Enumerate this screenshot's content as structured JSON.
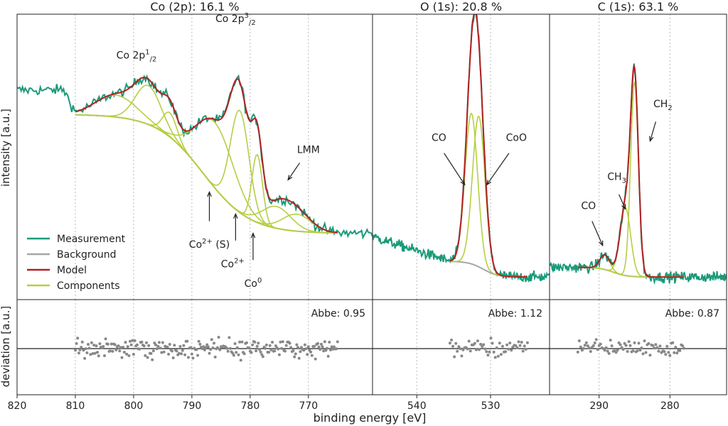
{
  "chart_data": {
    "type": "line",
    "xlabel": "binding energy [eV]",
    "ylabel_top": "intensity [a.u.]",
    "ylabel_bottom": "deviation [a.u.]",
    "legend": {
      "position": "bottom-left of first panel",
      "entries": [
        {
          "label": "Measurement",
          "color": "#1a9a7a"
        },
        {
          "label": "Background",
          "color": "#a6a6a6"
        },
        {
          "label": "Model",
          "color": "#b22222"
        },
        {
          "label": "Components",
          "color": "#b5cf43"
        }
      ]
    },
    "colors": {
      "measurement": "#1a9a7a",
      "background": "#a6a6a6",
      "model": "#b22222",
      "components": "#b5cf43",
      "residual": "#888888"
    },
    "panels": [
      {
        "id": "co",
        "title": "Co (2p): 16.1 %",
        "xlim": [
          820,
          759
        ],
        "ylim": [
          0,
          1.05
        ],
        "xticks": [
          820,
          810,
          800,
          790,
          780,
          770
        ],
        "xtick_labels": [
          "820",
          "810",
          "800",
          "790",
          "780",
          "770"
        ],
        "grid_x": [
          810,
          800,
          790,
          780,
          770
        ],
        "fit_range": [
          810,
          765
        ],
        "background_baseline": {
          "hi": 0.69,
          "lo": 0.2,
          "center": 788,
          "width": 4
        },
        "components": [
          {
            "center": 803,
            "amp": 0.09,
            "width": 3.5
          },
          {
            "center": 797.5,
            "amp": 0.16,
            "width": 2.2
          },
          {
            "center": 793.8,
            "amp": 0.1,
            "width": 1.2
          },
          {
            "center": 786,
            "amp": 0.27,
            "width": 3.2
          },
          {
            "center": 781.8,
            "amp": 0.42,
            "width": 1.6
          },
          {
            "center": 778.8,
            "amp": 0.28,
            "width": 0.9
          },
          {
            "center": 775.5,
            "amp": 0.09,
            "width": 2.5
          },
          {
            "center": 772,
            "amp": 0.07,
            "width": 2.5
          }
        ],
        "measurement_range": [
          820,
          759
        ],
        "measurement_extra": {
          "rise_start": 812,
          "rise_amp": 0.1
        },
        "abbe": "Abbe: 0.95",
        "annotations": [
          {
            "label": "Co 2p",
            "sup": "1",
            "sub": "/2",
            "x": 799.5,
            "y": 0.92,
            "anchor": "middle"
          },
          {
            "label": "Co 2p",
            "sup": "3",
            "sub": "/2",
            "x": 782.5,
            "y": 1.07,
            "anchor": "middle"
          },
          {
            "label": "LMM",
            "x": 770,
            "y": 0.53,
            "anchor": "middle"
          },
          {
            "label": "Co",
            "sup": "2+",
            "suffix": " (S)",
            "x": 787,
            "y": 0.14,
            "anchor": "middle"
          },
          {
            "label": "Co",
            "sup": "2+",
            "x": 783,
            "y": 0.06,
            "anchor": "middle"
          },
          {
            "label": "Co",
            "sup": "0",
            "x": 779.5,
            "y": -0.02,
            "anchor": "middle"
          }
        ],
        "arrows": [
          {
            "x1": 787,
            "y1": 0.25,
            "x2": 787,
            "y2": 0.37
          },
          {
            "x1": 782.5,
            "y1": 0.17,
            "x2": 782.5,
            "y2": 0.28
          },
          {
            "x1": 779.5,
            "y1": 0.09,
            "x2": 779.5,
            "y2": 0.2
          },
          {
            "x1": 771.5,
            "y1": 0.49,
            "x2": 773.5,
            "y2": 0.42
          }
        ]
      },
      {
        "id": "o",
        "title": "O (1s): 20.8 %",
        "xlim": [
          546,
          522
        ],
        "ylim": [
          0,
          1.05
        ],
        "xticks": [
          540,
          530
        ],
        "xtick_labels": [
          "540",
          "530"
        ],
        "grid_x": [
          540,
          530
        ],
        "fit_range": [
          535.5,
          525
        ],
        "background_baseline": {
          "hi": 0.085,
          "lo": 0.02,
          "center": 531,
          "width": 1
        },
        "components": [
          {
            "center": 532.6,
            "amp": 0.62,
            "width": 0.85
          },
          {
            "center": 531.6,
            "amp": 0.62,
            "width": 0.85
          }
        ],
        "measurement_range": [
          546,
          522
        ],
        "measurement_extra": {
          "rise_start": 548,
          "rise_amp": 0.12
        },
        "abbe": "Abbe: 1.12",
        "annotations": [
          {
            "label": "CO",
            "x": 537,
            "y": 0.58,
            "anchor": "middle"
          },
          {
            "label": "CoO",
            "x": 526.5,
            "y": 0.58,
            "anchor": "middle"
          }
        ],
        "arrows": [
          {
            "x1": 536.3,
            "y1": 0.53,
            "x2": 533.5,
            "y2": 0.4
          },
          {
            "x1": 527.5,
            "y1": 0.53,
            "x2": 530.5,
            "y2": 0.4
          }
        ]
      },
      {
        "id": "c",
        "title": "C (1s): 63.1 %",
        "xlim": [
          297,
          272
        ],
        "ylim": [
          0,
          1.05
        ],
        "xticks": [
          290,
          280
        ],
        "xtick_labels": [
          "290",
          "280"
        ],
        "grid_x": [
          290,
          280
        ],
        "fit_range": [
          293,
          278
        ],
        "background_baseline": {
          "hi": 0.06,
          "lo": 0.02,
          "center": 288,
          "width": 1
        },
        "components": [
          {
            "center": 289.2,
            "amp": 0.06,
            "width": 0.7
          },
          {
            "center": 286.3,
            "amp": 0.28,
            "width": 0.75
          },
          {
            "center": 285.0,
            "amp": 0.8,
            "width": 0.55
          }
        ],
        "measurement_range": [
          297,
          272
        ],
        "measurement_extra": {
          "rise_start": 299,
          "rise_amp": 0.0
        },
        "abbe": "Abbe: 0.87",
        "annotations": [
          {
            "label": "CO",
            "x": 291.5,
            "y": 0.3,
            "anchor": "middle"
          },
          {
            "label": "CH",
            "sub": "3",
            "x": 287.5,
            "y": 0.42,
            "anchor": "middle"
          },
          {
            "label": "CH",
            "sub": "2",
            "x": 281,
            "y": 0.72,
            "anchor": "middle"
          }
        ],
        "arrows": [
          {
            "x1": 291,
            "y1": 0.25,
            "x2": 289.5,
            "y2": 0.15
          },
          {
            "x1": 287.2,
            "y1": 0.36,
            "x2": 286.3,
            "y2": 0.3
          },
          {
            "x1": 282,
            "y1": 0.66,
            "x2": 282.8,
            "y2": 0.58
          }
        ]
      }
    ]
  }
}
